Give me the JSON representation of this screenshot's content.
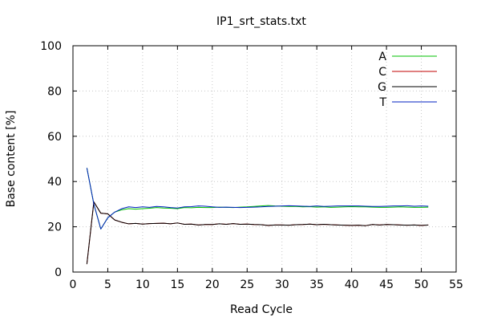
{
  "chart_data": {
    "type": "line",
    "title": "IP1_srt_stats.txt",
    "xlabel": "Read Cycle",
    "ylabel": "Base content [%]",
    "xlim": [
      0,
      55
    ],
    "ylim": [
      0,
      100
    ],
    "xticks": [
      0,
      5,
      10,
      15,
      20,
      25,
      30,
      35,
      40,
      45,
      50,
      55
    ],
    "yticks": [
      0,
      20,
      40,
      60,
      80,
      100
    ],
    "grid": true,
    "legend_position": "top-right",
    "x": [
      2,
      3,
      4,
      5,
      6,
      7,
      8,
      9,
      10,
      11,
      12,
      13,
      14,
      15,
      16,
      17,
      18,
      19,
      20,
      21,
      22,
      23,
      24,
      25,
      26,
      27,
      28,
      29,
      30,
      31,
      32,
      33,
      34,
      35,
      36,
      37,
      38,
      39,
      40,
      41,
      42,
      43,
      44,
      45,
      46,
      47,
      48,
      49,
      50,
      51
    ],
    "series": [
      {
        "name": "A",
        "color": "#00c000",
        "values": [
          46,
          30,
          19,
          24,
          26.5,
          27.5,
          28,
          27.8,
          28,
          28.2,
          28.5,
          28.3,
          28.2,
          28,
          28.5,
          28.4,
          28.6,
          28.5,
          28.5,
          28.7,
          28.6,
          28.5,
          28.7,
          28.8,
          29,
          29.2,
          29.4,
          29.2,
          29.1,
          29,
          29,
          28.8,
          28.9,
          28.7,
          28.8,
          28.6,
          28.7,
          28.8,
          28.9,
          28.8,
          28.8,
          28.7,
          28.6,
          28.6,
          28.7,
          28.8,
          28.7,
          28.6,
          28.6,
          28.7
        ]
      },
      {
        "name": "C",
        "color": "#c00000",
        "values": [
          3.5,
          31,
          26,
          25.7,
          23,
          22,
          21.3,
          21.5,
          21.2,
          21.4,
          21.5,
          21.6,
          21.3,
          21.7,
          21.1,
          21.2,
          20.8,
          21,
          21,
          21.3,
          21.1,
          21.4,
          21.1,
          21.2,
          21,
          20.9,
          20.6,
          20.8,
          20.8,
          20.7,
          20.9,
          21,
          21.2,
          20.9,
          21.1,
          20.9,
          20.8,
          20.7,
          20.6,
          20.7,
          20.5,
          21,
          20.8,
          21,
          20.9,
          20.8,
          20.7,
          20.8,
          20.6,
          20.8
        ]
      },
      {
        "name": "G",
        "color": "#000000",
        "values": [
          3.5,
          31,
          26,
          25.7,
          23,
          22,
          21.3,
          21.5,
          21.2,
          21.4,
          21.5,
          21.6,
          21.3,
          21.7,
          21.1,
          21.2,
          20.8,
          21,
          21,
          21.3,
          21.1,
          21.4,
          21.1,
          21.2,
          21,
          20.9,
          20.6,
          20.8,
          20.8,
          20.7,
          20.9,
          21,
          21.2,
          20.9,
          21.1,
          20.9,
          20.8,
          20.7,
          20.6,
          20.7,
          20.5,
          21,
          20.8,
          21,
          20.9,
          20.8,
          20.7,
          20.8,
          20.6,
          20.8
        ]
      },
      {
        "name": "T",
        "color": "#0020c0",
        "values": [
          46,
          30,
          19,
          24,
          26.5,
          28,
          28.8,
          28.5,
          28.8,
          28.6,
          29,
          28.8,
          28.5,
          28.3,
          28.8,
          28.9,
          29.2,
          29.1,
          28.8,
          28.6,
          28.7,
          28.6,
          28.5,
          28.6,
          28.7,
          28.8,
          29,
          29.1,
          29.2,
          29.3,
          29.2,
          29.1,
          29,
          29.2,
          29,
          29.1,
          29.2,
          29.2,
          29.2,
          29.2,
          29.1,
          29,
          29,
          29.1,
          29.2,
          29.2,
          29.3,
          29.1,
          29.2,
          29.1
        ]
      }
    ]
  }
}
